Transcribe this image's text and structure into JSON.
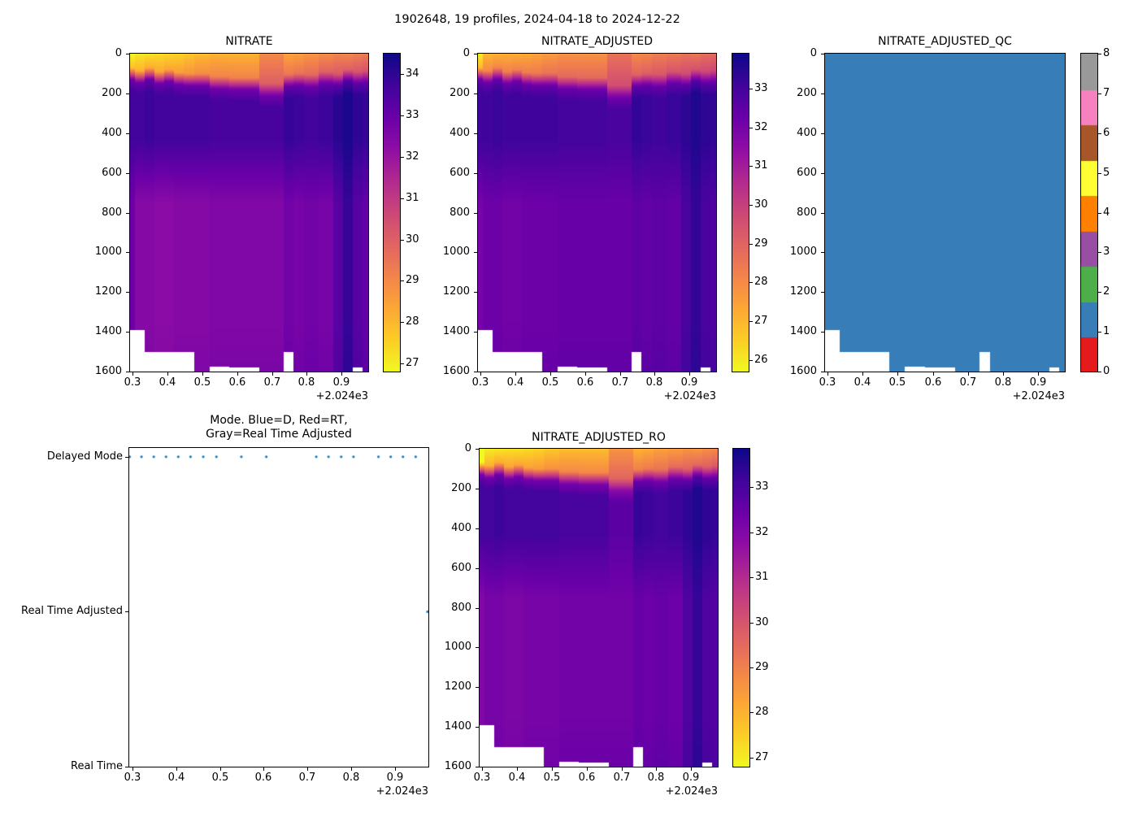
{
  "figure": {
    "suptitle": "1902648, 19 profiles, 2024-04-18 to 2024-12-22",
    "background": "#ffffff"
  },
  "palette": {
    "plasma_reversed_stops": [
      "#0d0887",
      "#41049d",
      "#6a00a8",
      "#8f0da4",
      "#b12a90",
      "#cc4778",
      "#e16462",
      "#f2844b",
      "#fca636",
      "#fcce25",
      "#f0f921"
    ],
    "qc_level_colors": [
      "#e41a1c",
      "#377eb8",
      "#4daf4a",
      "#984ea3",
      "#ff7f00",
      "#ffff33",
      "#a65628",
      "#f781bf",
      "#999999"
    ],
    "dot_color": "#1f77b4",
    "axis_color": "#000000"
  },
  "times": [
    0.294,
    0.321,
    0.349,
    0.377,
    0.405,
    0.433,
    0.462,
    0.492,
    0.549,
    0.606,
    0.72,
    0.748,
    0.777,
    0.805,
    0.862,
    0.89,
    0.918,
    0.947,
    0.974
  ],
  "time_axis_offset": "+2.024e3",
  "max_depths": [
    1390,
    1390,
    1500,
    1500,
    1500,
    1500,
    1500,
    1600,
    1575,
    1580,
    1600,
    1500,
    1600,
    1600,
    1600,
    1600,
    1600,
    1580,
    1600
  ],
  "chart_data": [
    {
      "type": "heatmap",
      "title": "NITRATE",
      "x_ticks": [
        0.3,
        0.4,
        0.5,
        0.6,
        0.7,
        0.8,
        0.9
      ],
      "y_ticks": [
        0,
        200,
        400,
        600,
        800,
        1000,
        1200,
        1400,
        1600
      ],
      "xlim": [
        0.293,
        0.976
      ],
      "ylim": [
        1600,
        0
      ],
      "vmin": 26.8,
      "vmax": 34.5,
      "colorbar_ticks": [
        34,
        33,
        32,
        31,
        30,
        29,
        28,
        27
      ],
      "xlabel_offset": "+2.024e3",
      "profiles": {
        "surface": [
          26.8,
          27.1,
          27.2,
          27.3,
          27.4,
          27.5,
          27.7,
          27.9,
          28.1,
          28.1,
          29.0,
          28.4,
          28.5,
          28.7,
          28.9,
          29.1,
          29.0,
          29.2,
          29.3
        ],
        "transition": [
          120,
          135,
          120,
          140,
          130,
          145,
          150,
          150,
          165,
          170,
          200,
          155,
          150,
          155,
          140,
          150,
          130,
          140,
          135
        ],
        "deep_upper": [
          33.7,
          33.7,
          33.8,
          33.7,
          33.7,
          33.7,
          33.7,
          33.7,
          33.6,
          33.6,
          33.6,
          33.9,
          33.8,
          33.7,
          33.8,
          34.1,
          34.3,
          34.0,
          33.9
        ],
        "deep_mid": [
          32.9,
          32.4,
          32.4,
          32.3,
          32.3,
          32.4,
          32.4,
          32.4,
          32.5,
          32.5,
          32.5,
          32.8,
          32.7,
          32.8,
          32.7,
          33.3,
          33.9,
          33.3,
          33.1
        ]
      }
    },
    {
      "type": "heatmap",
      "title": "NITRATE_ADJUSTED",
      "x_ticks": [
        0.3,
        0.4,
        0.5,
        0.6,
        0.7,
        0.8,
        0.9
      ],
      "y_ticks": [
        0,
        200,
        400,
        600,
        800,
        1000,
        1200,
        1400,
        1600
      ],
      "xlim": [
        0.293,
        0.976
      ],
      "ylim": [
        1600,
        0
      ],
      "vmin": 25.7,
      "vmax": 33.9,
      "colorbar_ticks": [
        33,
        32,
        31,
        30,
        29,
        28,
        27,
        26
      ],
      "xlabel_offset": "+2.024e3",
      "profiles": {
        "surface": [
          25.9,
          27.0,
          27.1,
          27.2,
          27.2,
          27.3,
          27.4,
          27.6,
          27.8,
          27.8,
          28.6,
          28.0,
          28.1,
          28.3,
          28.4,
          28.6,
          28.5,
          28.7,
          28.8
        ],
        "transition": [
          120,
          135,
          120,
          140,
          130,
          145,
          150,
          150,
          165,
          170,
          210,
          155,
          150,
          155,
          140,
          150,
          130,
          140,
          135
        ],
        "deep_upper": [
          33.1,
          33.1,
          33.2,
          33.1,
          33.1,
          33.1,
          33.1,
          33.1,
          33.0,
          33.0,
          32.9,
          33.3,
          33.2,
          33.1,
          33.2,
          33.4,
          33.6,
          33.4,
          33.3
        ],
        "deep_mid": [
          32.0,
          32.2,
          32.2,
          32.1,
          32.1,
          32.2,
          32.2,
          32.2,
          32.3,
          32.3,
          32.3,
          32.5,
          32.4,
          32.5,
          32.4,
          32.9,
          33.3,
          32.9,
          32.8
        ]
      }
    },
    {
      "type": "qc_heatmap",
      "title": "NITRATE_ADJUSTED_QC",
      "x_ticks": [
        0.3,
        0.4,
        0.5,
        0.6,
        0.7,
        0.8,
        0.9
      ],
      "y_ticks": [
        0,
        200,
        400,
        600,
        800,
        1000,
        1200,
        1400,
        1600
      ],
      "xlim": [
        0.293,
        0.976
      ],
      "ylim": [
        1600,
        0
      ],
      "vmin": 0,
      "vmax": 8,
      "qc_value": 1,
      "colorbar_ticks": [
        8,
        7,
        6,
        5,
        4,
        3,
        2,
        1,
        0
      ],
      "xlabel_offset": "+2.024e3"
    },
    {
      "type": "scatter",
      "title_line1": "Mode. Blue=D, Red=RT,",
      "title_line2": "Gray=Real Time Adjusted",
      "y_categories": [
        "Delayed Mode",
        "Real Time Adjusted",
        "Real Time"
      ],
      "category_values": [
        2,
        1,
        0
      ],
      "ylim": [
        0,
        2.057
      ],
      "x_ticks": [
        0.3,
        0.4,
        0.5,
        0.6,
        0.7,
        0.8,
        0.9
      ],
      "xlim": [
        0.293,
        0.976
      ],
      "modes": [
        "D",
        "D",
        "D",
        "D",
        "D",
        "D",
        "D",
        "D",
        "D",
        "D",
        "D",
        "D",
        "D",
        "D",
        "D",
        "D",
        "D",
        "D",
        "A"
      ],
      "xlabel_offset": "+2.024e3"
    },
    {
      "type": "heatmap",
      "title": "NITRATE_ADJUSTED_RO",
      "x_ticks": [
        0.3,
        0.4,
        0.5,
        0.6,
        0.7,
        0.8,
        0.9
      ],
      "y_ticks": [
        0,
        200,
        400,
        600,
        800,
        1000,
        1200,
        1400,
        1600
      ],
      "xlim": [
        0.293,
        0.976
      ],
      "ylim": [
        1600,
        0
      ],
      "vmin": 26.8,
      "vmax": 33.85,
      "colorbar_ticks": [
        33,
        32,
        31,
        30,
        29,
        28,
        27
      ],
      "xlabel_offset": "+2.024e3",
      "profiles": {
        "surface": [
          25.9,
          27.0,
          27.1,
          27.2,
          27.2,
          27.3,
          27.4,
          27.6,
          27.8,
          27.8,
          28.6,
          28.0,
          28.1,
          28.3,
          28.4,
          28.6,
          28.5,
          28.7,
          28.8
        ],
        "transition": [
          120,
          135,
          120,
          140,
          130,
          145,
          150,
          150,
          165,
          170,
          200,
          155,
          150,
          155,
          140,
          150,
          130,
          140,
          135
        ],
        "deep_upper": [
          33.1,
          33.1,
          33.2,
          33.1,
          33.1,
          33.1,
          33.1,
          33.1,
          33.0,
          33.0,
          32.7,
          33.3,
          33.2,
          33.1,
          33.2,
          33.4,
          33.6,
          33.4,
          33.3
        ],
        "deep_mid": [
          32.0,
          32.2,
          32.2,
          32.1,
          32.1,
          32.2,
          32.2,
          32.2,
          32.3,
          32.3,
          32.3,
          32.5,
          32.4,
          32.5,
          32.4,
          32.9,
          33.3,
          32.9,
          32.8
        ]
      }
    }
  ]
}
